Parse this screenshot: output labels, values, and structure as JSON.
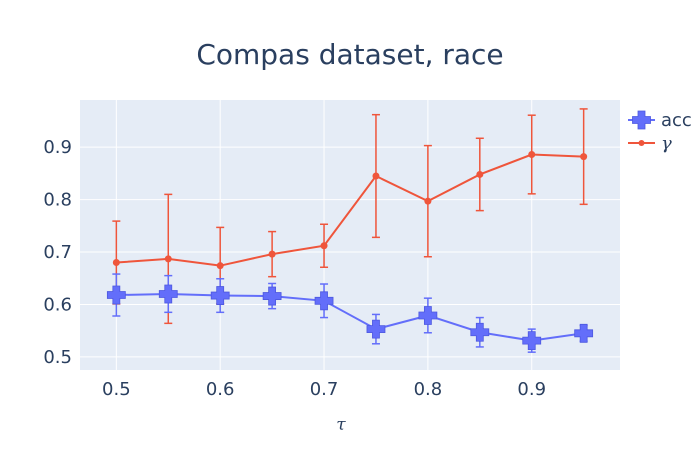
{
  "chart_data": {
    "type": "line",
    "title": "Compas dataset, race",
    "xlabel": "τ",
    "ylabel": "",
    "xlim": [
      0.465,
      0.985
    ],
    "ylim": [
      0.475,
      0.99
    ],
    "x_ticks": [
      0.5,
      0.6,
      0.7,
      0.8,
      0.9
    ],
    "x_tick_labels": [
      "0.5",
      "0.6",
      "0.7",
      "0.8",
      "0.9"
    ],
    "y_ticks": [
      0.5,
      0.6,
      0.7,
      0.8,
      0.9
    ],
    "y_tick_labels": [
      "0.5",
      "0.6",
      "0.7",
      "0.8",
      "0.9"
    ],
    "grid": true,
    "legend_position": "top-right",
    "x": [
      0.5,
      0.55,
      0.6,
      0.65,
      0.7,
      0.75,
      0.8,
      0.85,
      0.9,
      0.95
    ],
    "series": [
      {
        "name": "acc",
        "color": "#636efa",
        "marker": "cross",
        "values": [
          0.618,
          0.62,
          0.617,
          0.616,
          0.607,
          0.553,
          0.579,
          0.547,
          0.531,
          0.545
        ],
        "error": [
          0.04,
          0.035,
          0.032,
          0.024,
          0.032,
          0.028,
          0.033,
          0.028,
          0.022,
          0.015
        ]
      },
      {
        "name": "γ",
        "color": "#ef553b",
        "marker": "circle",
        "values": [
          0.68,
          0.687,
          0.674,
          0.696,
          0.712,
          0.845,
          0.797,
          0.848,
          0.886,
          0.882
        ],
        "error": [
          0.079,
          0.123,
          0.073,
          0.043,
          0.041,
          0.117,
          0.106,
          0.069,
          0.075,
          0.091
        ]
      }
    ]
  }
}
